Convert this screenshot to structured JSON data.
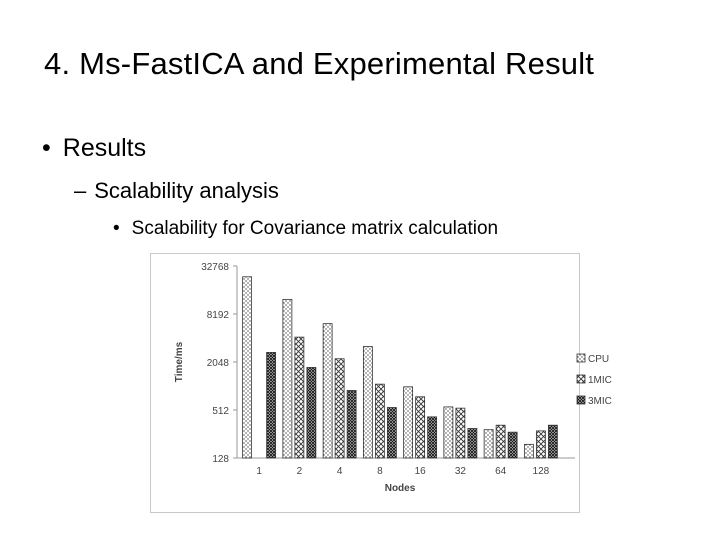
{
  "slide": {
    "title": "4.  Ms-FastICA and Experimental Result",
    "bullet_1": "Results",
    "bullet_2": "Scalability analysis",
    "bullet_3": "Scalability for Covariance matrix calculation",
    "bullet_mark_1": "•",
    "bullet_mark_2": "–",
    "bullet_mark_3": "•"
  },
  "chart_data": {
    "type": "bar",
    "title": "",
    "xlabel": "Nodes",
    "ylabel": "Time/ms",
    "y_scale": "log2",
    "ylim": [
      128,
      32768
    ],
    "y_ticks": [
      128,
      512,
      2048,
      8192,
      32768
    ],
    "categories": [
      "1",
      "2",
      "4",
      "8",
      "16",
      "32",
      "64",
      "128"
    ],
    "series": [
      {
        "name": "CPU",
        "pattern": "dots",
        "values": [
          24000,
          12500,
          6200,
          3200,
          1000,
          560,
          290,
          190
        ]
      },
      {
        "name": "1MIC",
        "pattern": "cross",
        "values": [
          null,
          4200,
          2250,
          1080,
          750,
          540,
          330,
          280
        ]
      },
      {
        "name": "3MIC",
        "pattern": "dense",
        "values": [
          2700,
          1750,
          900,
          550,
          420,
          300,
          270,
          330
        ]
      }
    ],
    "legend_position": "right",
    "grid": false,
    "colors": {
      "bar_stroke": "#333333",
      "axis": "#999999",
      "text": "#444444",
      "border": "#c9c9c9"
    }
  }
}
